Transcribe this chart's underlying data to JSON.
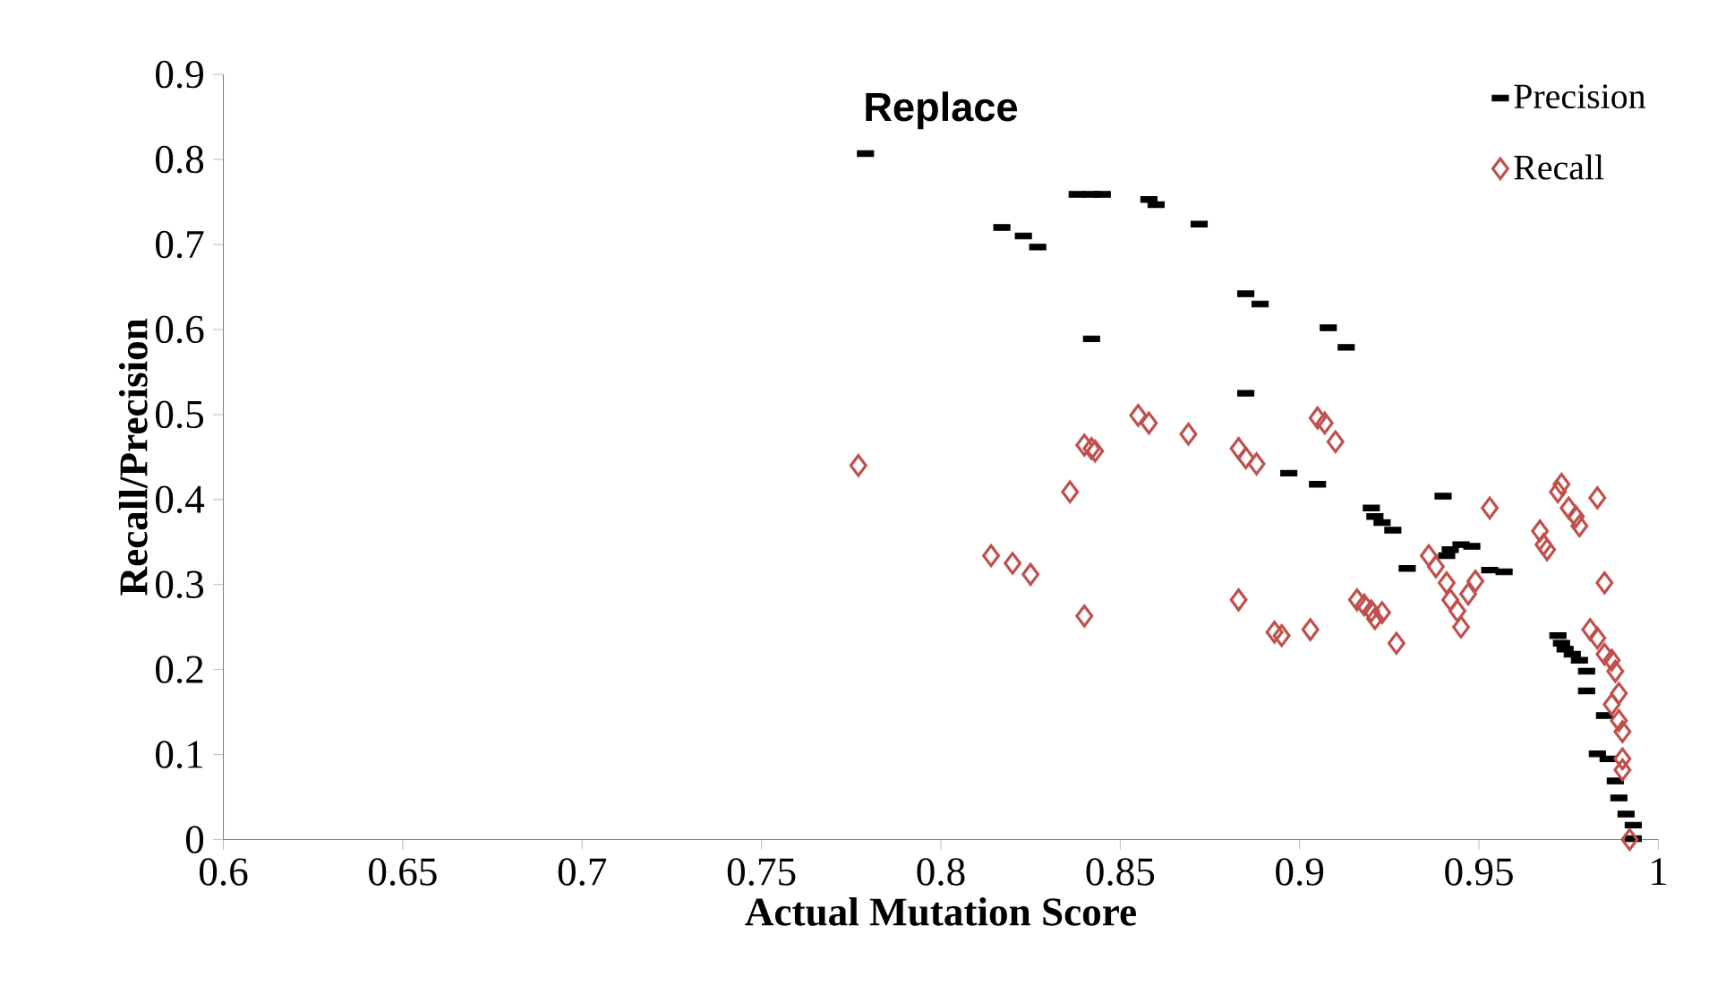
{
  "chart_data": {
    "type": "scatter",
    "title": "Replace",
    "xlabel": "Actual Mutation Score",
    "ylabel": "Recall/Precision",
    "xlim": [
      0.6,
      1
    ],
    "xticks": [
      0.6,
      0.65,
      0.7,
      0.75,
      0.8,
      0.85,
      0.9,
      0.95,
      1
    ],
    "ylim": [
      0,
      0.9
    ],
    "yticks": [
      0,
      0.1,
      0.2,
      0.3,
      0.4,
      0.5,
      0.6,
      0.7,
      0.8,
      0.9
    ],
    "grid": false,
    "legend": "top right",
    "series": [
      {
        "name": "Precision",
        "color": "#000000",
        "marker": "square",
        "x": [
          0.779,
          0.817,
          0.823,
          0.827,
          0.838,
          0.842,
          0.845,
          0.842,
          0.858,
          0.86,
          0.872,
          0.885,
          0.889,
          0.885,
          0.897,
          0.905,
          0.908,
          0.913,
          0.92,
          0.921,
          0.923,
          0.926,
          0.93,
          0.94,
          0.942,
          0.945,
          0.948,
          0.941,
          0.953,
          0.957,
          0.972,
          0.973,
          0.974,
          0.976,
          0.978,
          0.98,
          0.98,
          0.983,
          0.985,
          0.986,
          0.988,
          0.989,
          0.991,
          0.993,
          0.993
        ],
        "values": [
          0.807,
          0.72,
          0.71,
          0.697,
          0.759,
          0.759,
          0.759,
          0.589,
          0.753,
          0.747,
          0.724,
          0.642,
          0.63,
          0.525,
          0.431,
          0.418,
          0.602,
          0.579,
          0.39,
          0.38,
          0.373,
          0.364,
          0.319,
          0.404,
          0.341,
          0.347,
          0.345,
          0.334,
          0.317,
          0.315,
          0.24,
          0.231,
          0.224,
          0.218,
          0.211,
          0.198,
          0.175,
          0.101,
          0.146,
          0.095,
          0.069,
          0.049,
          0.03,
          0.017,
          0.001
        ]
      },
      {
        "name": "Recall",
        "color": "#c0504d",
        "marker": "diamond",
        "x": [
          0.777,
          0.814,
          0.82,
          0.825,
          0.836,
          0.84,
          0.84,
          0.842,
          0.843,
          0.855,
          0.858,
          0.869,
          0.883,
          0.885,
          0.888,
          0.883,
          0.893,
          0.895,
          0.903,
          0.905,
          0.907,
          0.91,
          0.916,
          0.918,
          0.92,
          0.921,
          0.923,
          0.927,
          0.936,
          0.938,
          0.941,
          0.942,
          0.944,
          0.945,
          0.947,
          0.949,
          0.953,
          0.967,
          0.968,
          0.969,
          0.972,
          0.973,
          0.975,
          0.977,
          0.978,
          0.983,
          0.985,
          0.981,
          0.983,
          0.985,
          0.987,
          0.988,
          0.989,
          0.987,
          0.989,
          0.99,
          0.99,
          0.99,
          0.992
        ],
        "values": [
          0.44,
          0.334,
          0.325,
          0.312,
          0.409,
          0.263,
          0.464,
          0.46,
          0.457,
          0.499,
          0.49,
          0.477,
          0.46,
          0.449,
          0.442,
          0.282,
          0.244,
          0.24,
          0.247,
          0.496,
          0.49,
          0.468,
          0.282,
          0.276,
          0.269,
          0.26,
          0.267,
          0.231,
          0.334,
          0.321,
          0.302,
          0.282,
          0.269,
          0.25,
          0.289,
          0.304,
          0.39,
          0.363,
          0.347,
          0.341,
          0.409,
          0.418,
          0.39,
          0.38,
          0.369,
          0.402,
          0.302,
          0.247,
          0.237,
          0.218,
          0.211,
          0.198,
          0.172,
          0.159,
          0.14,
          0.127,
          0.095,
          0.082,
          0.0
        ]
      }
    ]
  }
}
